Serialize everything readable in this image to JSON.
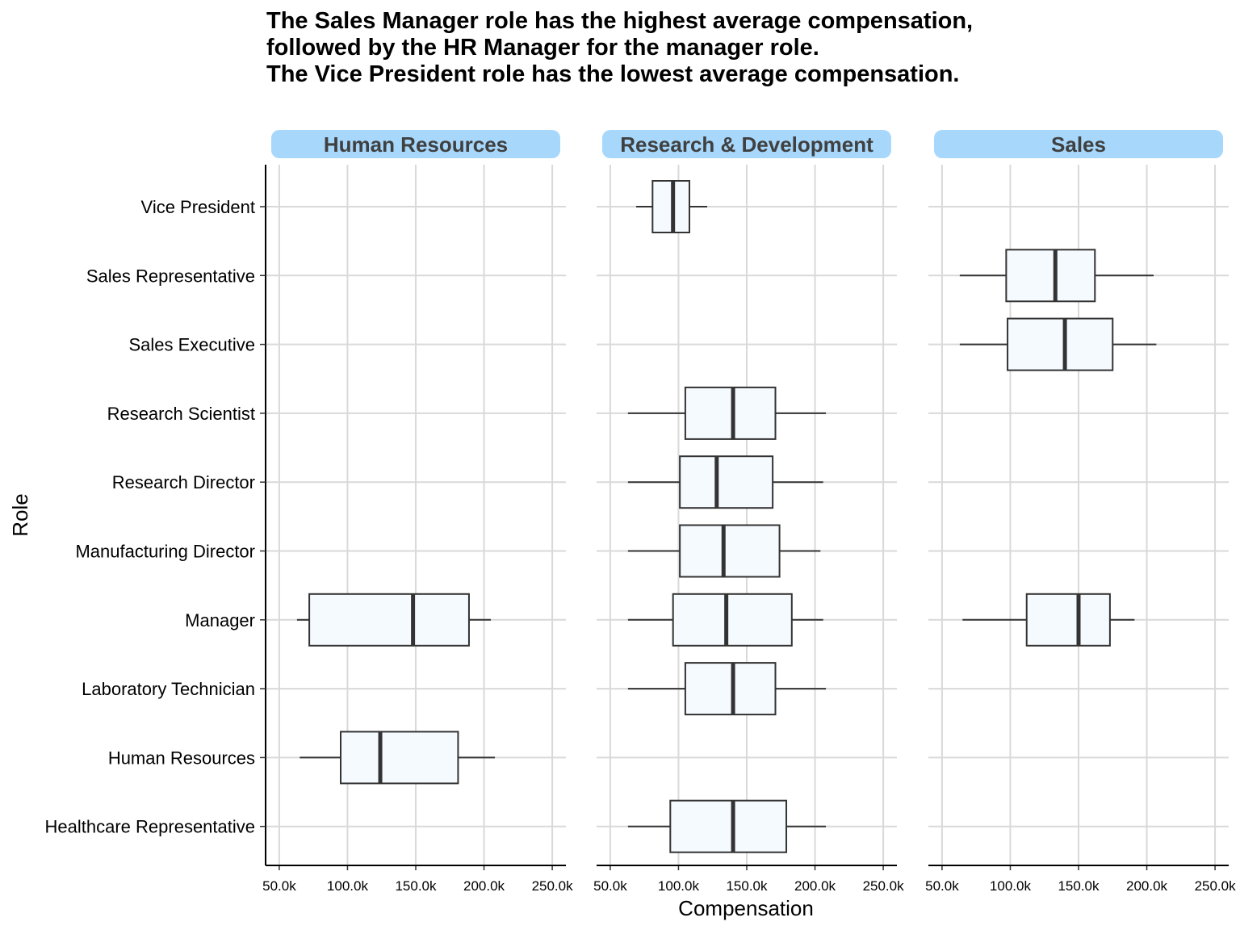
{
  "chart_data": {
    "type": "boxplot",
    "title_lines": [
      "The Sales Manager role has the highest average compensation,",
      "followed by the HR Manager for the manager role.",
      "The Vice President role has the lowest average compensation."
    ],
    "xlabel": "Compensation",
    "ylabel": "Role",
    "xlim": [
      40000,
      260000
    ],
    "x_ticks": [
      50000,
      100000,
      150000,
      200000,
      250000
    ],
    "x_tick_labels": [
      "50.0k",
      "100.0k",
      "150.0k",
      "200.0k",
      "250.0k"
    ],
    "grid": true,
    "roles": [
      "Vice President",
      "Sales Representative",
      "Sales Executive",
      "Research Scientist",
      "Research Director",
      "Manufacturing Director",
      "Manager",
      "Laboratory Technician",
      "Human Resources",
      "Healthcare Representative"
    ],
    "facets": [
      {
        "name": "Human Resources",
        "boxes": [
          {
            "role": "Manager",
            "min": 63000,
            "q1": 72000,
            "median": 148000,
            "q3": 189000,
            "max": 205000
          },
          {
            "role": "Human Resources",
            "min": 65000,
            "q1": 95000,
            "median": 124000,
            "q3": 181000,
            "max": 208000
          }
        ]
      },
      {
        "name": "Research & Development",
        "boxes": [
          {
            "role": "Vice President",
            "min": 69000,
            "q1": 81000,
            "median": 96000,
            "q3": 108000,
            "max": 121000
          },
          {
            "role": "Research Scientist",
            "min": 63000,
            "q1": 105000,
            "median": 140000,
            "q3": 171000,
            "max": 208000
          },
          {
            "role": "Research Director",
            "min": 63000,
            "q1": 101000,
            "median": 128000,
            "q3": 169000,
            "max": 206000
          },
          {
            "role": "Manufacturing Director",
            "min": 63000,
            "q1": 101000,
            "median": 133000,
            "q3": 174000,
            "max": 204000
          },
          {
            "role": "Manager",
            "min": 63000,
            "q1": 96000,
            "median": 135000,
            "q3": 183000,
            "max": 206000
          },
          {
            "role": "Laboratory Technician",
            "min": 63000,
            "q1": 105000,
            "median": 140000,
            "q3": 171000,
            "max": 208000
          },
          {
            "role": "Healthcare Representative",
            "min": 63000,
            "q1": 94000,
            "median": 140000,
            "q3": 179000,
            "max": 208000
          }
        ]
      },
      {
        "name": "Sales",
        "boxes": [
          {
            "role": "Sales Representative",
            "min": 63000,
            "q1": 97000,
            "median": 133000,
            "q3": 162000,
            "max": 205000
          },
          {
            "role": "Sales Executive",
            "min": 63000,
            "q1": 98000,
            "median": 140000,
            "q3": 175000,
            "max": 207000
          },
          {
            "role": "Manager",
            "min": 65000,
            "q1": 112000,
            "median": 150000,
            "q3": 173000,
            "max": 191000
          }
        ]
      }
    ],
    "colors": {
      "box_fill": "#F5FAFF",
      "box_stroke": "#333333",
      "strip_fill": "#A7D8FC",
      "strip_text": "#404040",
      "grid": "#D9D9D9",
      "axis": "#000000"
    }
  }
}
